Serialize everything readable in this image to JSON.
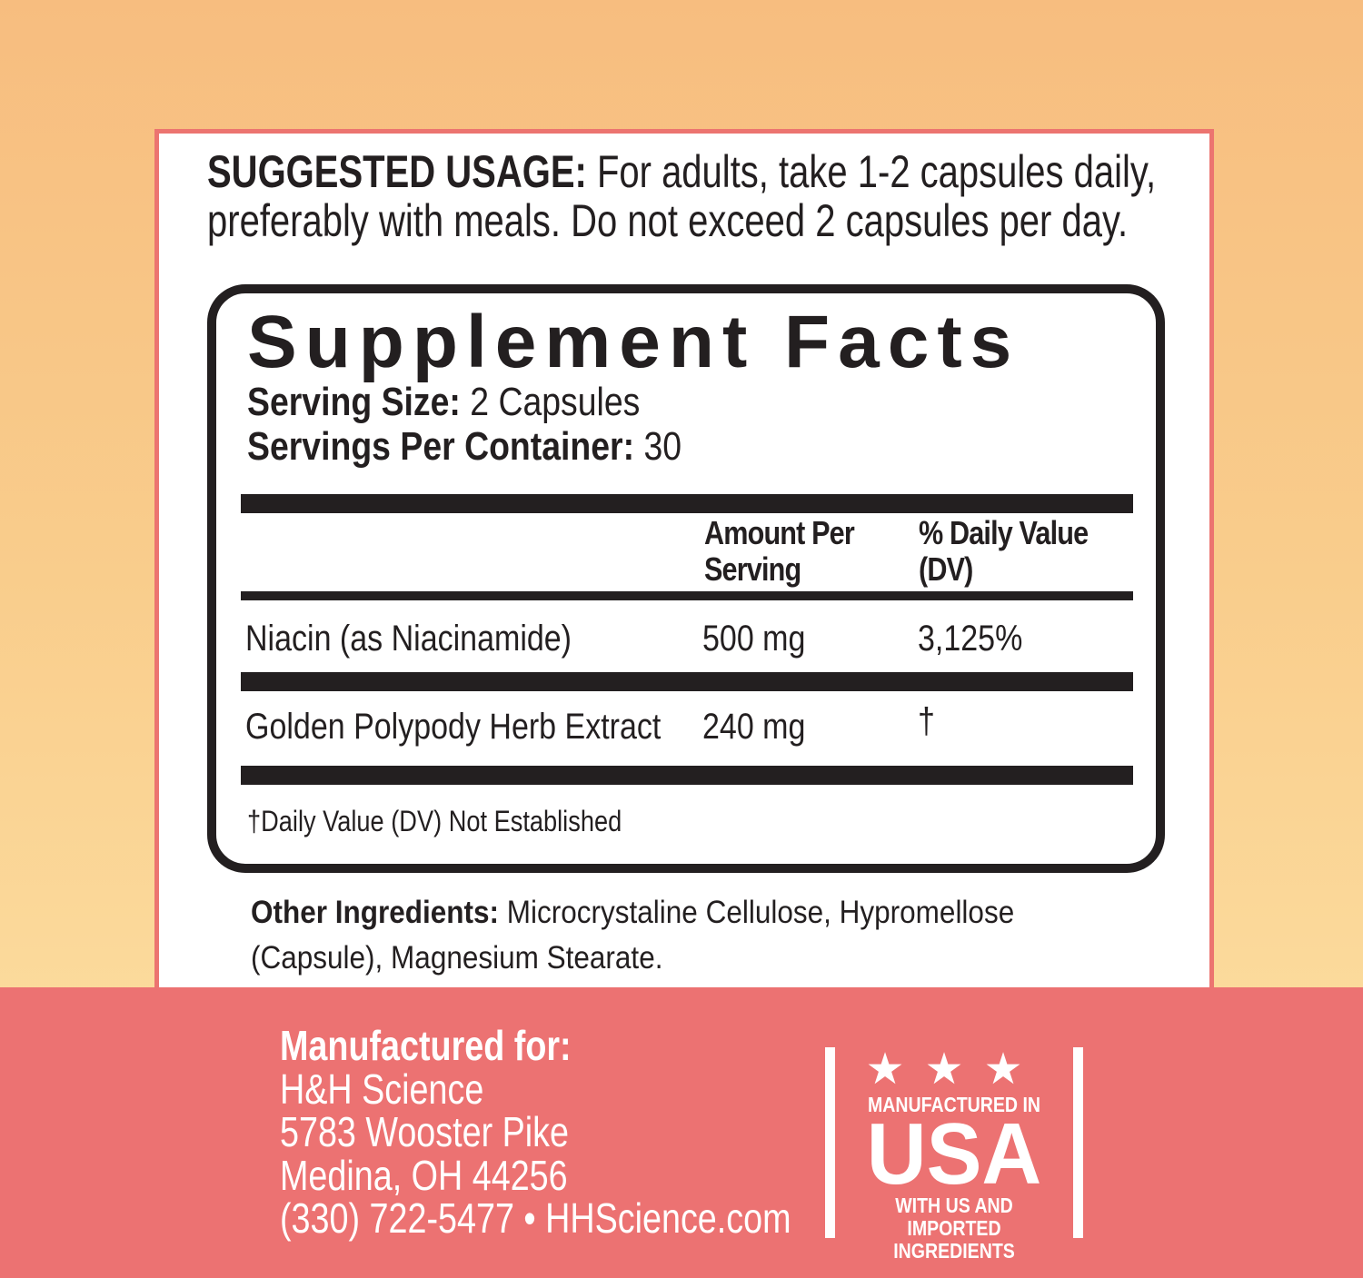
{
  "usage": {
    "label": "SUGGESTED USAGE:",
    "line1": " For adults, take 1-2 capsules daily,",
    "line2": "preferably with meals. Do not exceed 2 capsules per day."
  },
  "facts": {
    "title": "Supplement Facts",
    "serving_size_label": "Serving Size:",
    "serving_size": " 2 Capsules",
    "servings_label": "Servings Per Container:",
    "servings": " 30",
    "headers": {
      "amount_1": "Amount Per",
      "amount_2": "Serving",
      "dv_1": "% Daily Value",
      "dv_2": "(DV)"
    },
    "rows": [
      {
        "name": "Niacin (as Niacinamide)",
        "amount": "500 mg",
        "dv": "3,125%"
      },
      {
        "name": "Golden Polypody Herb Extract",
        "amount": "240 mg",
        "dv": "†"
      }
    ],
    "footnote": "†Daily Value (DV) Not Established"
  },
  "other": {
    "label": "Other Ingredients:",
    "line1": " Microcrystaline Cellulose, Hypromellose",
    "line2": "(Capsule), Magnesium Stearate."
  },
  "manufacturer": {
    "label": "Manufactured for:",
    "name": "H&H Science",
    "street": "5783 Wooster Pike",
    "city": "Medina, OH 44256",
    "contact": "(330) 722-5477 • HHScience.com"
  },
  "badge": {
    "stars": "★★★",
    "line1": "MANUFACTURED IN",
    "line2": "USA",
    "line3": "WITH US AND",
    "line4": "IMPORTED INGREDIENTS"
  },
  "colors": {
    "accent": "#ec7272",
    "text": "#231f20",
    "background_top": "#f7bd7f",
    "background_bottom": "#fde3a6"
  }
}
